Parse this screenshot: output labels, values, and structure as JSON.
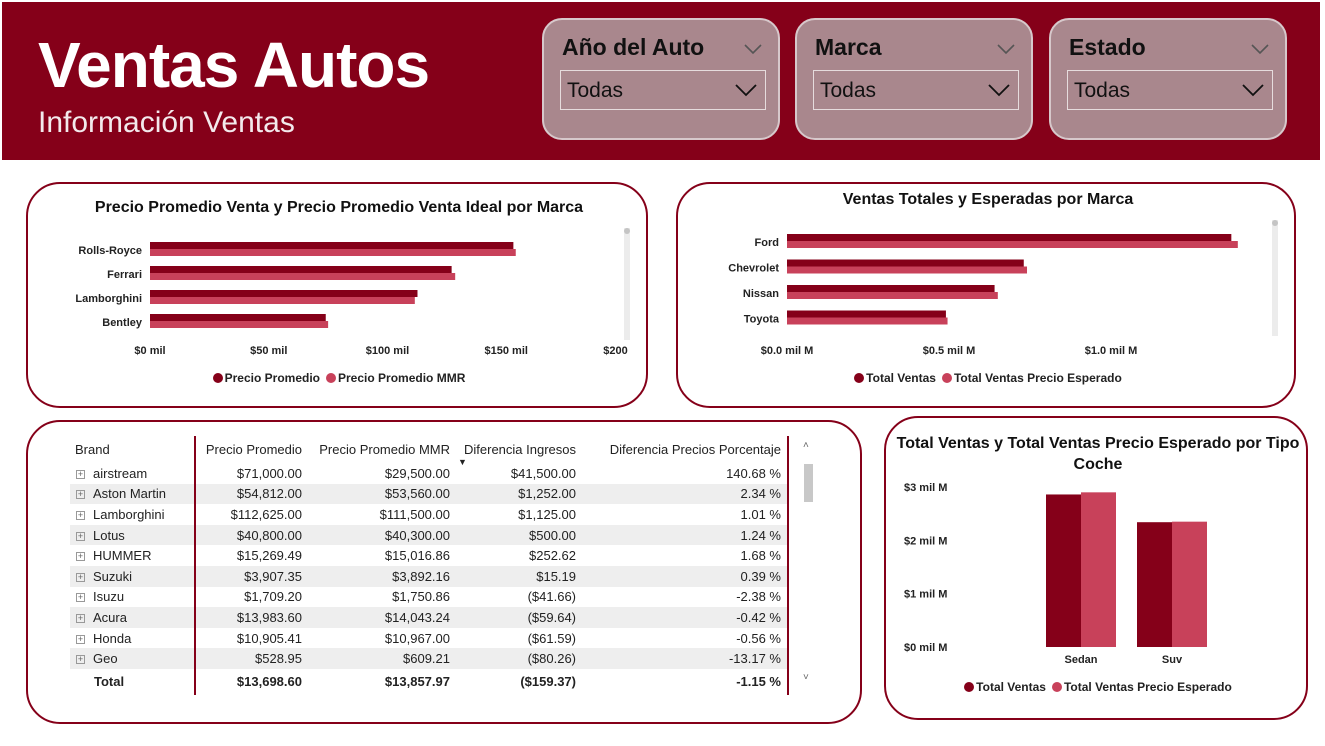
{
  "header": {
    "title": "Ventas Autos",
    "subtitle": "Información Ventas"
  },
  "slicers": [
    {
      "label": "Año del Auto",
      "value": "Todas"
    },
    {
      "label": "Marca",
      "value": "Todas"
    },
    {
      "label": "Estado",
      "value": "Todas"
    }
  ],
  "colors": {
    "dark": "#850019",
    "light": "#c8415a",
    "header_bg": "#850019",
    "slicer_bg": "#a9878d"
  },
  "chart_data": [
    {
      "type": "bar",
      "orientation": "horizontal",
      "title": "Precio Promedio Venta y Precio Promedio Venta Ideal por Marca",
      "categories": [
        "Rolls-Royce",
        "Ferrari",
        "Lamborghini",
        "Bentley"
      ],
      "series": [
        {
          "name": "Precio Promedio",
          "values": [
            153000,
            127000,
            112625,
            74000
          ]
        },
        {
          "name": "Precio Promedio MMR",
          "values": [
            154000,
            128500,
            111500,
            75000
          ]
        }
      ],
      "xlim": [
        0,
        200000
      ],
      "xticks": [
        "$0 mil",
        "$50 mil",
        "$100 mil",
        "$150 mil",
        "$200 mil"
      ],
      "legend": "bottom-center"
    },
    {
      "type": "bar",
      "orientation": "horizontal",
      "title": "Ventas Totales y Esperadas por Marca",
      "categories": [
        "Ford",
        "Chevrolet",
        "Nissan",
        "Toyota"
      ],
      "series": [
        {
          "name": "Total Ventas",
          "values": [
            1.37,
            0.73,
            0.64,
            0.49
          ]
        },
        {
          "name": "Total Ventas Precio Esperado",
          "values": [
            1.39,
            0.74,
            0.65,
            0.495
          ]
        }
      ],
      "xlim": [
        0,
        1.5
      ],
      "xticks": [
        "$0.0 mil M",
        "$0.5 mil M",
        "$1.0 mil M"
      ],
      "legend": "bottom-center"
    },
    {
      "type": "bar",
      "orientation": "vertical",
      "title": "Total Ventas y Total Ventas Precio Esperado por Tipo Coche",
      "categories": [
        "Sedan",
        "Suv"
      ],
      "series": [
        {
          "name": "Total Ventas",
          "values": [
            2.86,
            2.34
          ]
        },
        {
          "name": "Total Ventas Precio Esperado",
          "values": [
            2.9,
            2.35
          ]
        }
      ],
      "ylim": [
        0,
        3
      ],
      "yticks": [
        "$0 mil M",
        "$1 mil M",
        "$2 mil M",
        "$3 mil M"
      ],
      "legend": "bottom-center"
    }
  ],
  "table": {
    "columns": [
      "Brand",
      "Precio Promedio",
      "Precio Promedio MMR",
      "Diferencia Ingresos",
      "Diferencia Precios Porcentaje"
    ],
    "rows": [
      [
        "airstream",
        "$71,000.00",
        "$29,500.00",
        "$41,500.00",
        "140.68 %"
      ],
      [
        "Aston Martin",
        "$54,812.00",
        "$53,560.00",
        "$1,252.00",
        "2.34 %"
      ],
      [
        "Lamborghini",
        "$112,625.00",
        "$111,500.00",
        "$1,125.00",
        "1.01 %"
      ],
      [
        "Lotus",
        "$40,800.00",
        "$40,300.00",
        "$500.00",
        "1.24 %"
      ],
      [
        "HUMMER",
        "$15,269.49",
        "$15,016.86",
        "$252.62",
        "1.68 %"
      ],
      [
        "Suzuki",
        "$3,907.35",
        "$3,892.16",
        "$15.19",
        "0.39 %"
      ],
      [
        "Isuzu",
        "$1,709.20",
        "$1,750.86",
        "($41.66)",
        "-2.38 %"
      ],
      [
        "Acura",
        "$13,983.60",
        "$14,043.24",
        "($59.64)",
        "-0.42 %"
      ],
      [
        "Honda",
        "$10,905.41",
        "$10,967.00",
        "($61.59)",
        "-0.56 %"
      ],
      [
        "Geo",
        "$528.95",
        "$609.21",
        "($80.26)",
        "-13.17 %"
      ]
    ],
    "total": [
      "Total",
      "$13,698.60",
      "$13,857.97",
      "($159.37)",
      "-1.15 %"
    ]
  }
}
